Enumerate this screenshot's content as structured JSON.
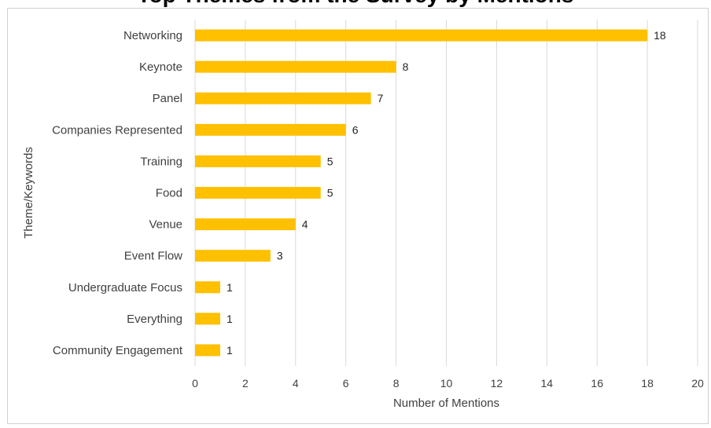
{
  "chart_data": {
    "type": "bar",
    "orientation": "horizontal",
    "title": "",
    "xlabel": "Number of Mentions",
    "ylabel": "Theme/Keywords",
    "xlim": [
      0,
      20
    ],
    "xticks": [
      0,
      2,
      4,
      6,
      8,
      10,
      12,
      14,
      16,
      18,
      20
    ],
    "grid": true,
    "bar_color": "#FFC000",
    "categories": [
      "Networking",
      "Keynote",
      "Panel",
      "Companies Represented",
      "Training",
      "Food",
      "Venue",
      "Event Flow",
      "Undergraduate Focus",
      "Everything",
      "Community Engagement"
    ],
    "values": [
      18,
      8,
      7,
      6,
      5,
      5,
      4,
      3,
      1,
      1,
      1
    ]
  }
}
